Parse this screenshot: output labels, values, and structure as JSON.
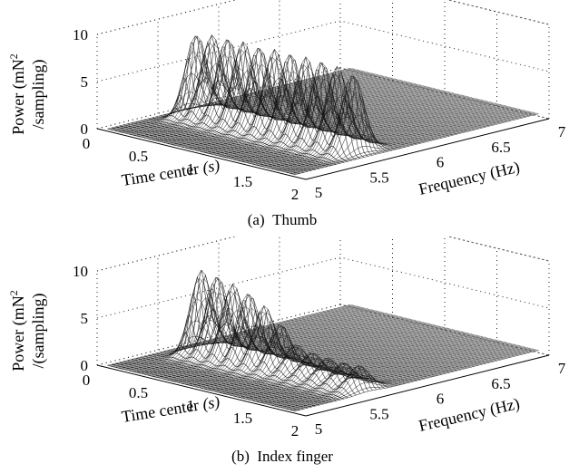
{
  "chart_data": [
    {
      "type": "surface",
      "panel_label": "(a)",
      "caption": "Thumb",
      "zlabel_line1": "Power (mN",
      "zlabel_sup": "2",
      "zlabel_line2": "/sampling)",
      "xlabel": "Time center",
      "xlabel_unit": "(s)",
      "ylabel": "Frequency (Hz)",
      "x_ticks": [
        "0",
        "0.5",
        "1",
        "1.5",
        "2"
      ],
      "y_ticks": [
        "5",
        "5.5",
        "6",
        "6.5",
        "7"
      ],
      "z_ticks": [
        "0",
        "5",
        "10"
      ],
      "xlim": [
        0,
        2
      ],
      "ylim": [
        5,
        7
      ],
      "zlim": [
        0,
        10
      ],
      "peaks": [
        {
          "time": 0.25,
          "power": 8.5
        },
        {
          "time": 0.4,
          "power": 8.8
        },
        {
          "time": 0.55,
          "power": 8.9
        },
        {
          "time": 0.7,
          "power": 8.9
        },
        {
          "time": 0.85,
          "power": 8.8
        },
        {
          "time": 1.0,
          "power": 8.9
        },
        {
          "time": 1.15,
          "power": 8.9
        },
        {
          "time": 1.3,
          "power": 8.9
        },
        {
          "time": 1.45,
          "power": 8.9
        },
        {
          "time": 1.6,
          "power": 8.7
        },
        {
          "time": 1.75,
          "power": 8.3
        }
      ],
      "peak_frequency": 5.6,
      "grid": true
    },
    {
      "type": "surface",
      "panel_label": "(b)",
      "caption": "Index finger",
      "zlabel_line1": "Power (mN",
      "zlabel_sup": "2",
      "zlabel_line2": "/(sampling)",
      "xlabel": "Time center",
      "xlabel_unit": "(s)",
      "ylabel": "Frequency (Hz)",
      "x_ticks": [
        "0",
        "0.5",
        "1",
        "1.5",
        "2"
      ],
      "y_ticks": [
        "5",
        "5.5",
        "6",
        "6.5",
        "7"
      ],
      "z_ticks": [
        "0",
        "5",
        "10"
      ],
      "xlim": [
        0,
        2
      ],
      "ylim": [
        5,
        7
      ],
      "zlim": [
        0,
        10
      ],
      "peaks": [
        {
          "time": 0.3,
          "power": 8.7
        },
        {
          "time": 0.45,
          "power": 8.5
        },
        {
          "time": 0.6,
          "power": 8.0
        },
        {
          "time": 0.75,
          "power": 7.5
        },
        {
          "time": 0.9,
          "power": 6.5
        },
        {
          "time": 1.05,
          "power": 5.0
        },
        {
          "time": 1.2,
          "power": 3.2
        },
        {
          "time": 1.35,
          "power": 2.8
        },
        {
          "time": 1.5,
          "power": 2.6
        },
        {
          "time": 1.65,
          "power": 2.5
        },
        {
          "time": 1.8,
          "power": 2.6
        }
      ],
      "peak_frequency": 5.6,
      "grid": true
    }
  ]
}
